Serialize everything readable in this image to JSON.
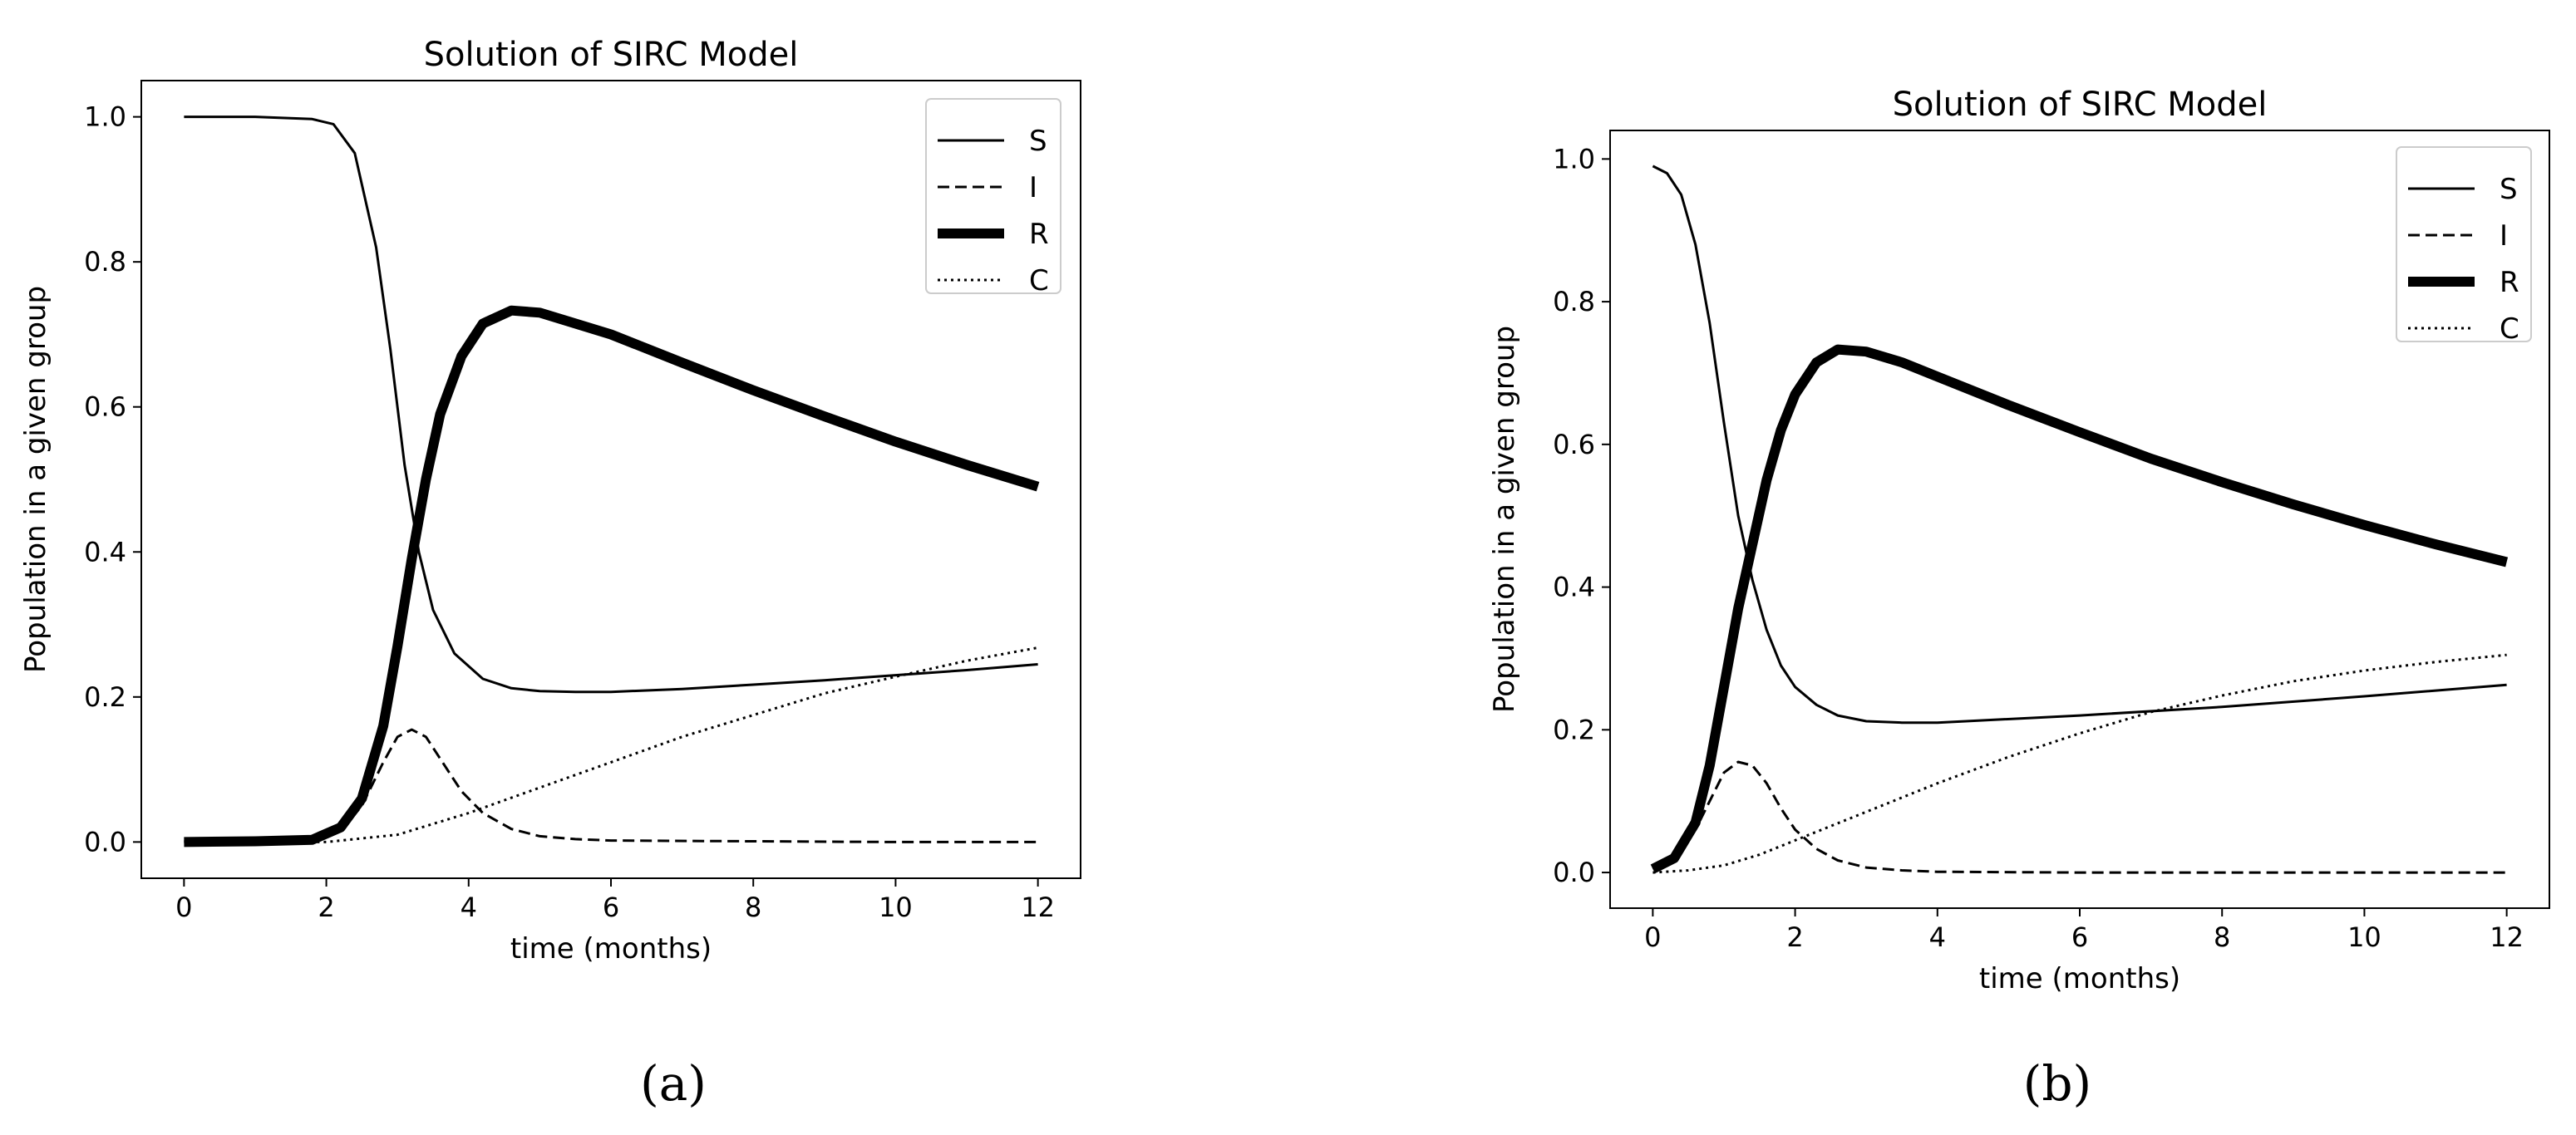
{
  "chart_data": [
    {
      "type": "line",
      "title": "Solution of SIRC Model",
      "xlabel": "time (months)",
      "ylabel": "Population in a given group",
      "caption": "(a)",
      "xlim": [
        -0.6,
        12.6
      ],
      "ylim": [
        -0.05,
        1.05
      ],
      "xticks": [
        0,
        2,
        4,
        6,
        8,
        10,
        12
      ],
      "yticks": [
        0.0,
        0.2,
        0.4,
        0.6,
        0.8,
        1.0
      ],
      "legend_position": "top-right",
      "grid": false,
      "series": [
        {
          "name": "S",
          "style": "solid",
          "x": [
            0,
            1,
            1.8,
            2.1,
            2.4,
            2.7,
            2.9,
            3.1,
            3.3,
            3.5,
            3.8,
            4.2,
            4.6,
            5.0,
            5.5,
            6,
            7,
            8,
            9,
            10,
            11,
            12
          ],
          "y": [
            1.0,
            1.0,
            0.997,
            0.99,
            0.95,
            0.82,
            0.68,
            0.52,
            0.4,
            0.32,
            0.26,
            0.225,
            0.212,
            0.208,
            0.207,
            0.207,
            0.211,
            0.217,
            0.223,
            0.23,
            0.237,
            0.245
          ]
        },
        {
          "name": "I",
          "style": "dashed",
          "x": [
            0,
            1.8,
            2.2,
            2.5,
            2.8,
            3.0,
            3.2,
            3.4,
            3.6,
            3.9,
            4.2,
            4.6,
            5.0,
            5.5,
            6,
            8,
            10,
            12
          ],
          "y": [
            0.001,
            0.003,
            0.015,
            0.05,
            0.11,
            0.145,
            0.155,
            0.145,
            0.115,
            0.07,
            0.04,
            0.018,
            0.008,
            0.004,
            0.002,
            0.001,
            0.0,
            0.0
          ]
        },
        {
          "name": "R",
          "style": "thick",
          "x": [
            0,
            1,
            1.8,
            2.2,
            2.5,
            2.8,
            3.0,
            3.2,
            3.4,
            3.6,
            3.9,
            4.2,
            4.6,
            5.0,
            6,
            7,
            8,
            9,
            10,
            11,
            12
          ],
          "y": [
            0.0,
            0.001,
            0.003,
            0.02,
            0.06,
            0.16,
            0.27,
            0.39,
            0.5,
            0.59,
            0.67,
            0.715,
            0.733,
            0.73,
            0.7,
            0.661,
            0.623,
            0.587,
            0.552,
            0.52,
            0.49
          ]
        },
        {
          "name": "C",
          "style": "dotted",
          "x": [
            0,
            2,
            3,
            4,
            5,
            6,
            7,
            8,
            9,
            10,
            11,
            12
          ],
          "y": [
            0.0,
            0.0,
            0.01,
            0.04,
            0.075,
            0.11,
            0.145,
            0.175,
            0.205,
            0.228,
            0.25,
            0.268
          ]
        }
      ]
    },
    {
      "type": "line",
      "title": "Solution of SIRC Model",
      "xlabel": "time (months)",
      "ylabel": "Population in a given group",
      "caption": "(b)",
      "xlim": [
        -0.6,
        12.6
      ],
      "ylim": [
        -0.05,
        1.04
      ],
      "xticks": [
        0,
        2,
        4,
        6,
        8,
        10,
        12
      ],
      "yticks": [
        0.0,
        0.2,
        0.4,
        0.6,
        0.8,
        1.0
      ],
      "legend_position": "top-right",
      "grid": false,
      "series": [
        {
          "name": "S",
          "style": "solid",
          "x": [
            0,
            0.2,
            0.4,
            0.6,
            0.8,
            1.0,
            1.2,
            1.4,
            1.6,
            1.8,
            2.0,
            2.3,
            2.6,
            3.0,
            3.5,
            4,
            6,
            8,
            10,
            12
          ],
          "y": [
            0.99,
            0.98,
            0.95,
            0.88,
            0.77,
            0.63,
            0.5,
            0.41,
            0.34,
            0.29,
            0.26,
            0.235,
            0.22,
            0.212,
            0.21,
            0.21,
            0.22,
            0.232,
            0.247,
            0.263
          ]
        },
        {
          "name": "I",
          "style": "dashed",
          "x": [
            0,
            0.3,
            0.6,
            0.8,
            1.0,
            1.2,
            1.4,
            1.6,
            1.8,
            2.0,
            2.3,
            2.6,
            3.0,
            3.5,
            4,
            6,
            8,
            10,
            12
          ],
          "y": [
            0.005,
            0.02,
            0.06,
            0.1,
            0.14,
            0.155,
            0.15,
            0.125,
            0.09,
            0.06,
            0.033,
            0.017,
            0.007,
            0.003,
            0.001,
            0.0,
            0.0,
            0.0,
            0.0
          ]
        },
        {
          "name": "R",
          "style": "thick",
          "x": [
            0,
            0.3,
            0.6,
            0.8,
            1.0,
            1.2,
            1.4,
            1.6,
            1.8,
            2.0,
            2.3,
            2.6,
            3.0,
            3.5,
            4,
            5,
            6,
            7,
            8,
            9,
            10,
            11,
            12
          ],
          "y": [
            0.005,
            0.02,
            0.07,
            0.15,
            0.26,
            0.37,
            0.46,
            0.55,
            0.62,
            0.67,
            0.715,
            0.733,
            0.73,
            0.715,
            0.695,
            0.655,
            0.617,
            0.58,
            0.547,
            0.516,
            0.487,
            0.46,
            0.435
          ]
        },
        {
          "name": "C",
          "style": "dotted",
          "x": [
            0,
            0.5,
            1,
            1.5,
            2,
            3,
            4,
            5,
            6,
            7,
            8,
            9,
            10,
            11,
            12
          ],
          "y": [
            0.0,
            0.003,
            0.01,
            0.025,
            0.045,
            0.085,
            0.125,
            0.162,
            0.195,
            0.225,
            0.248,
            0.268,
            0.283,
            0.295,
            0.305
          ]
        }
      ]
    }
  ]
}
